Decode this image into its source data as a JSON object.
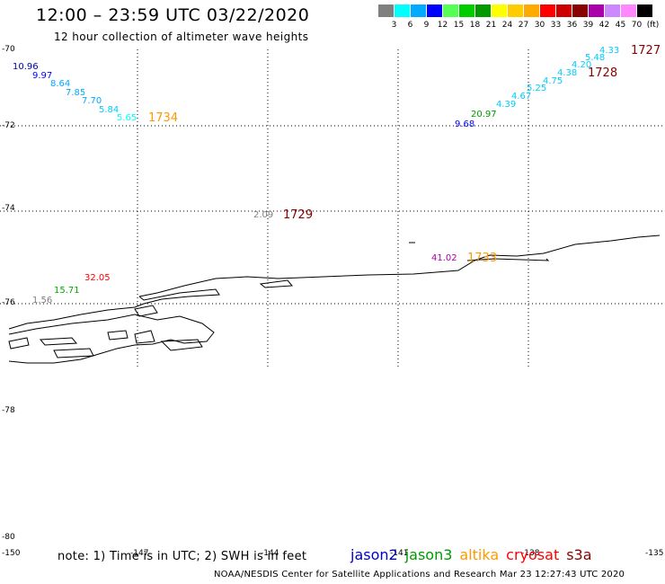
{
  "header": {
    "title": "12:00 – 23:59 UTC 03/22/2020",
    "subtitle": "12 hour collection of altimeter wave heights"
  },
  "color_scale": {
    "swatches": [
      "#808080",
      "#00ffff",
      "#00aaff",
      "#0000ff",
      "#55ff55",
      "#00cc00",
      "#009900",
      "#ffff00",
      "#ffcc00",
      "#ffaa00",
      "#ff0000",
      "#cc0000",
      "#880000",
      "#aa00aa",
      "#cc88ff",
      "#ff88ff",
      "#000000"
    ],
    "labels": [
      "3",
      "6",
      "9",
      "12",
      "15",
      "18",
      "21",
      "24",
      "27",
      "30",
      "33",
      "36",
      "39",
      "42",
      "45",
      "70",
      "(ft)"
    ]
  },
  "axes": {
    "lat_labels": [
      "-70",
      "-72",
      "-74",
      "-76",
      "-78",
      "-80"
    ],
    "lon_labels": [
      "-150",
      "-147",
      "-144",
      "-141",
      "-138",
      "-135"
    ]
  },
  "wave_heights": [
    {
      "text": "10.96",
      "color": "#0000aa"
    },
    {
      "text": "9.97",
      "color": "#0000ff"
    },
    {
      "text": "8.64",
      "color": "#00aaff"
    },
    {
      "text": "7.85",
      "color": "#00aaff"
    },
    {
      "text": "7.70",
      "color": "#00aaff"
    },
    {
      "text": "5.84",
      "color": "#00ccff"
    },
    {
      "text": "5.65",
      "color": "#00ffff"
    },
    {
      "text": "2.09",
      "color": "#808080"
    },
    {
      "text": "41.02",
      "color": "#aa00aa"
    },
    {
      "text": "32.05",
      "color": "#ff0000"
    },
    {
      "text": "15.71",
      "color": "#00aa00"
    },
    {
      "text": "1.56",
      "color": "#808080"
    },
    {
      "text": "9.68",
      "color": "#0000ff"
    },
    {
      "text": "20.97",
      "color": "#009900"
    },
    {
      "text": "4.39",
      "color": "#00ccff"
    },
    {
      "text": "4.67",
      "color": "#00ccff"
    },
    {
      "text": "5.25",
      "color": "#00ccff"
    },
    {
      "text": "4.75",
      "color": "#00ccff"
    },
    {
      "text": "4.38",
      "color": "#00ccff"
    },
    {
      "text": "4.20",
      "color": "#00ccff"
    },
    {
      "text": "5.48",
      "color": "#00ccff"
    },
    {
      "text": "4.33",
      "color": "#00ccff"
    }
  ],
  "pass_times": [
    {
      "text": "1734",
      "color": "#ff9900"
    },
    {
      "text": "1729",
      "color": "#880000"
    },
    {
      "text": "1733",
      "color": "#ff9900"
    },
    {
      "text": "1728",
      "color": "#880000"
    },
    {
      "text": "1727",
      "color": "#880000"
    }
  ],
  "footer": {
    "note": "note: 1) Time is in UTC; 2) SWH is in feet",
    "satellites": [
      {
        "name": "jason2",
        "color": "#0000cc"
      },
      {
        "name": "jason3",
        "color": "#009900"
      },
      {
        "name": "altika",
        "color": "#ff9900"
      },
      {
        "name": "cryosat",
        "color": "#ff0000"
      },
      {
        "name": "s3a",
        "color": "#880000"
      }
    ],
    "credit": "NOAA/NESDIS Center for Satellite Applications and Research   Mar 23 12:27:43 UTC 2020"
  }
}
